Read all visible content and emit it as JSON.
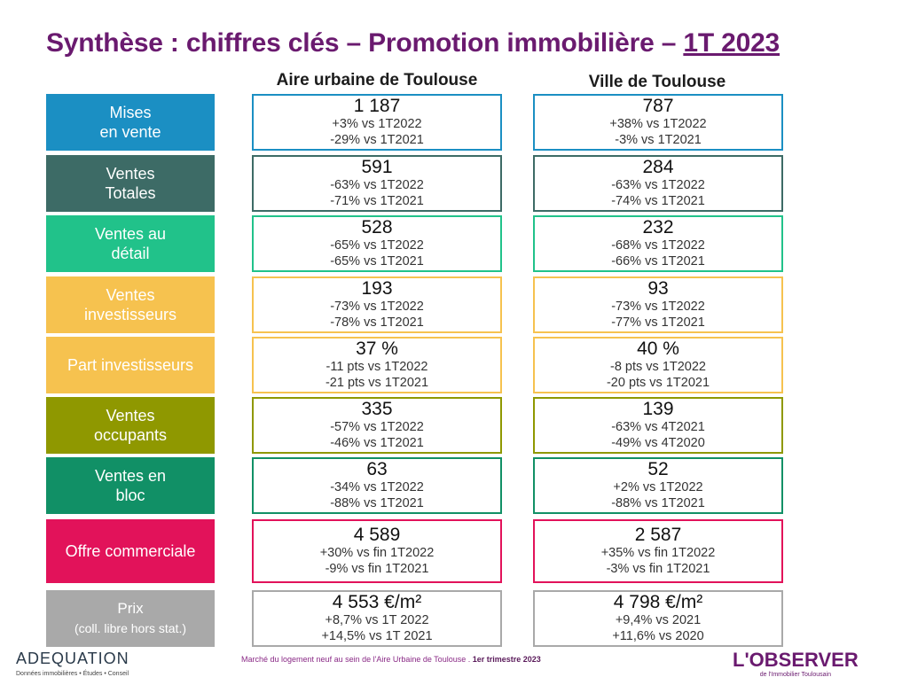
{
  "title": {
    "main": "Synthèse : chiffres clés – Promotion immobilière – ",
    "period": "1T 2023"
  },
  "columns": {
    "aire": "Aire urbaine de Toulouse",
    "ville": "Ville de Toulouse"
  },
  "rows": [
    {
      "label": "Mises\nen vente",
      "color": "#1b8fc3",
      "aire": {
        "value": "1 187",
        "d1": "+3% vs 1T2022",
        "d2": "-29% vs 1T2021"
      },
      "ville": {
        "value": "787",
        "d1": "+38% vs 1T2022",
        "d2": "-3% vs 1T2021"
      }
    },
    {
      "label": "Ventes\nTotales",
      "color": "#3d6b66",
      "aire": {
        "value": "591",
        "d1": "-63% vs 1T2022",
        "d2": "-71% vs 1T2021"
      },
      "ville": {
        "value": "284",
        "d1": "-63% vs 1T2022",
        "d2": "-74% vs 1T2021"
      }
    },
    {
      "label": "Ventes au\ndétail",
      "color": "#21c28a",
      "aire": {
        "value": "528",
        "d1": "-65% vs 1T2022",
        "d2": "-65% vs 1T2021"
      },
      "ville": {
        "value": "232",
        "d1": "-68% vs 1T2022",
        "d2": "-66% vs 1T2021"
      }
    },
    {
      "label": "Ventes\ninvestisseurs",
      "color": "#f6c24f",
      "aire": {
        "value": "193",
        "d1": "-73% vs 1T2022",
        "d2": "-78% vs 1T2021"
      },
      "ville": {
        "value": "93",
        "d1": "-73% vs 1T2022",
        "d2": "-77% vs 1T2021"
      }
    },
    {
      "label": "Part investisseurs",
      "color": "#f6c24f",
      "aire": {
        "value": "37 %",
        "d1": "-11 pts vs 1T2022",
        "d2": "-21 pts vs 1T2021"
      },
      "ville": {
        "value": "40 %",
        "d1": "-8 pts vs 1T2022",
        "d2": "-20 pts vs 1T2021"
      }
    },
    {
      "label": "Ventes\noccupants",
      "color": "#8f9800",
      "aire": {
        "value": "335",
        "d1": "-57% vs 1T2022",
        "d2": "-46% vs 1T2021"
      },
      "ville": {
        "value": "139",
        "d1": "-63% vs 4T2021",
        "d2": "-49% vs 4T2020"
      }
    },
    {
      "label": "Ventes en\nbloc",
      "color": "#119066",
      "aire": {
        "value": "63",
        "d1": "-34% vs 1T2022",
        "d2": "-88% vs 1T2021"
      },
      "ville": {
        "value": "52",
        "d1": "+2% vs 1T2022",
        "d2": "-88% vs 1T2021"
      }
    },
    {
      "label": "Offre commerciale",
      "color": "#e2125a",
      "aire": {
        "value": "4 589",
        "d1": "+30% vs fin 1T2022",
        "d2": "-9% vs fin 1T2021"
      },
      "ville": {
        "value": "2 587",
        "d1": "+35% vs fin 1T2022",
        "d2": "-3% vs fin 1T2021"
      }
    },
    {
      "label": "Prix\n(coll. libre hors stat.)",
      "color": "#a9a9a9",
      "aire": {
        "value": "4 553 €/m²",
        "d1": "+8,7% vs 1T 2022",
        "d2": "+14,5% vs 1T 2021"
      },
      "ville": {
        "value": "4 798 €/m²",
        "d1": "+9,4% vs 2021",
        "d2": "+11,6% vs 2020"
      }
    }
  ],
  "footer": {
    "note": "Marché du logement neuf au sein de l'Aire Urbaine de Toulouse . ",
    "note_bold": "1er trimestre 2023"
  },
  "logos": {
    "left_name": "ADEQUATION",
    "left_sub": "Données immobilières • Études • Conseil",
    "right_name": "L'OBSERVER",
    "right_sub": "de l'Immobilier Toulousain"
  }
}
